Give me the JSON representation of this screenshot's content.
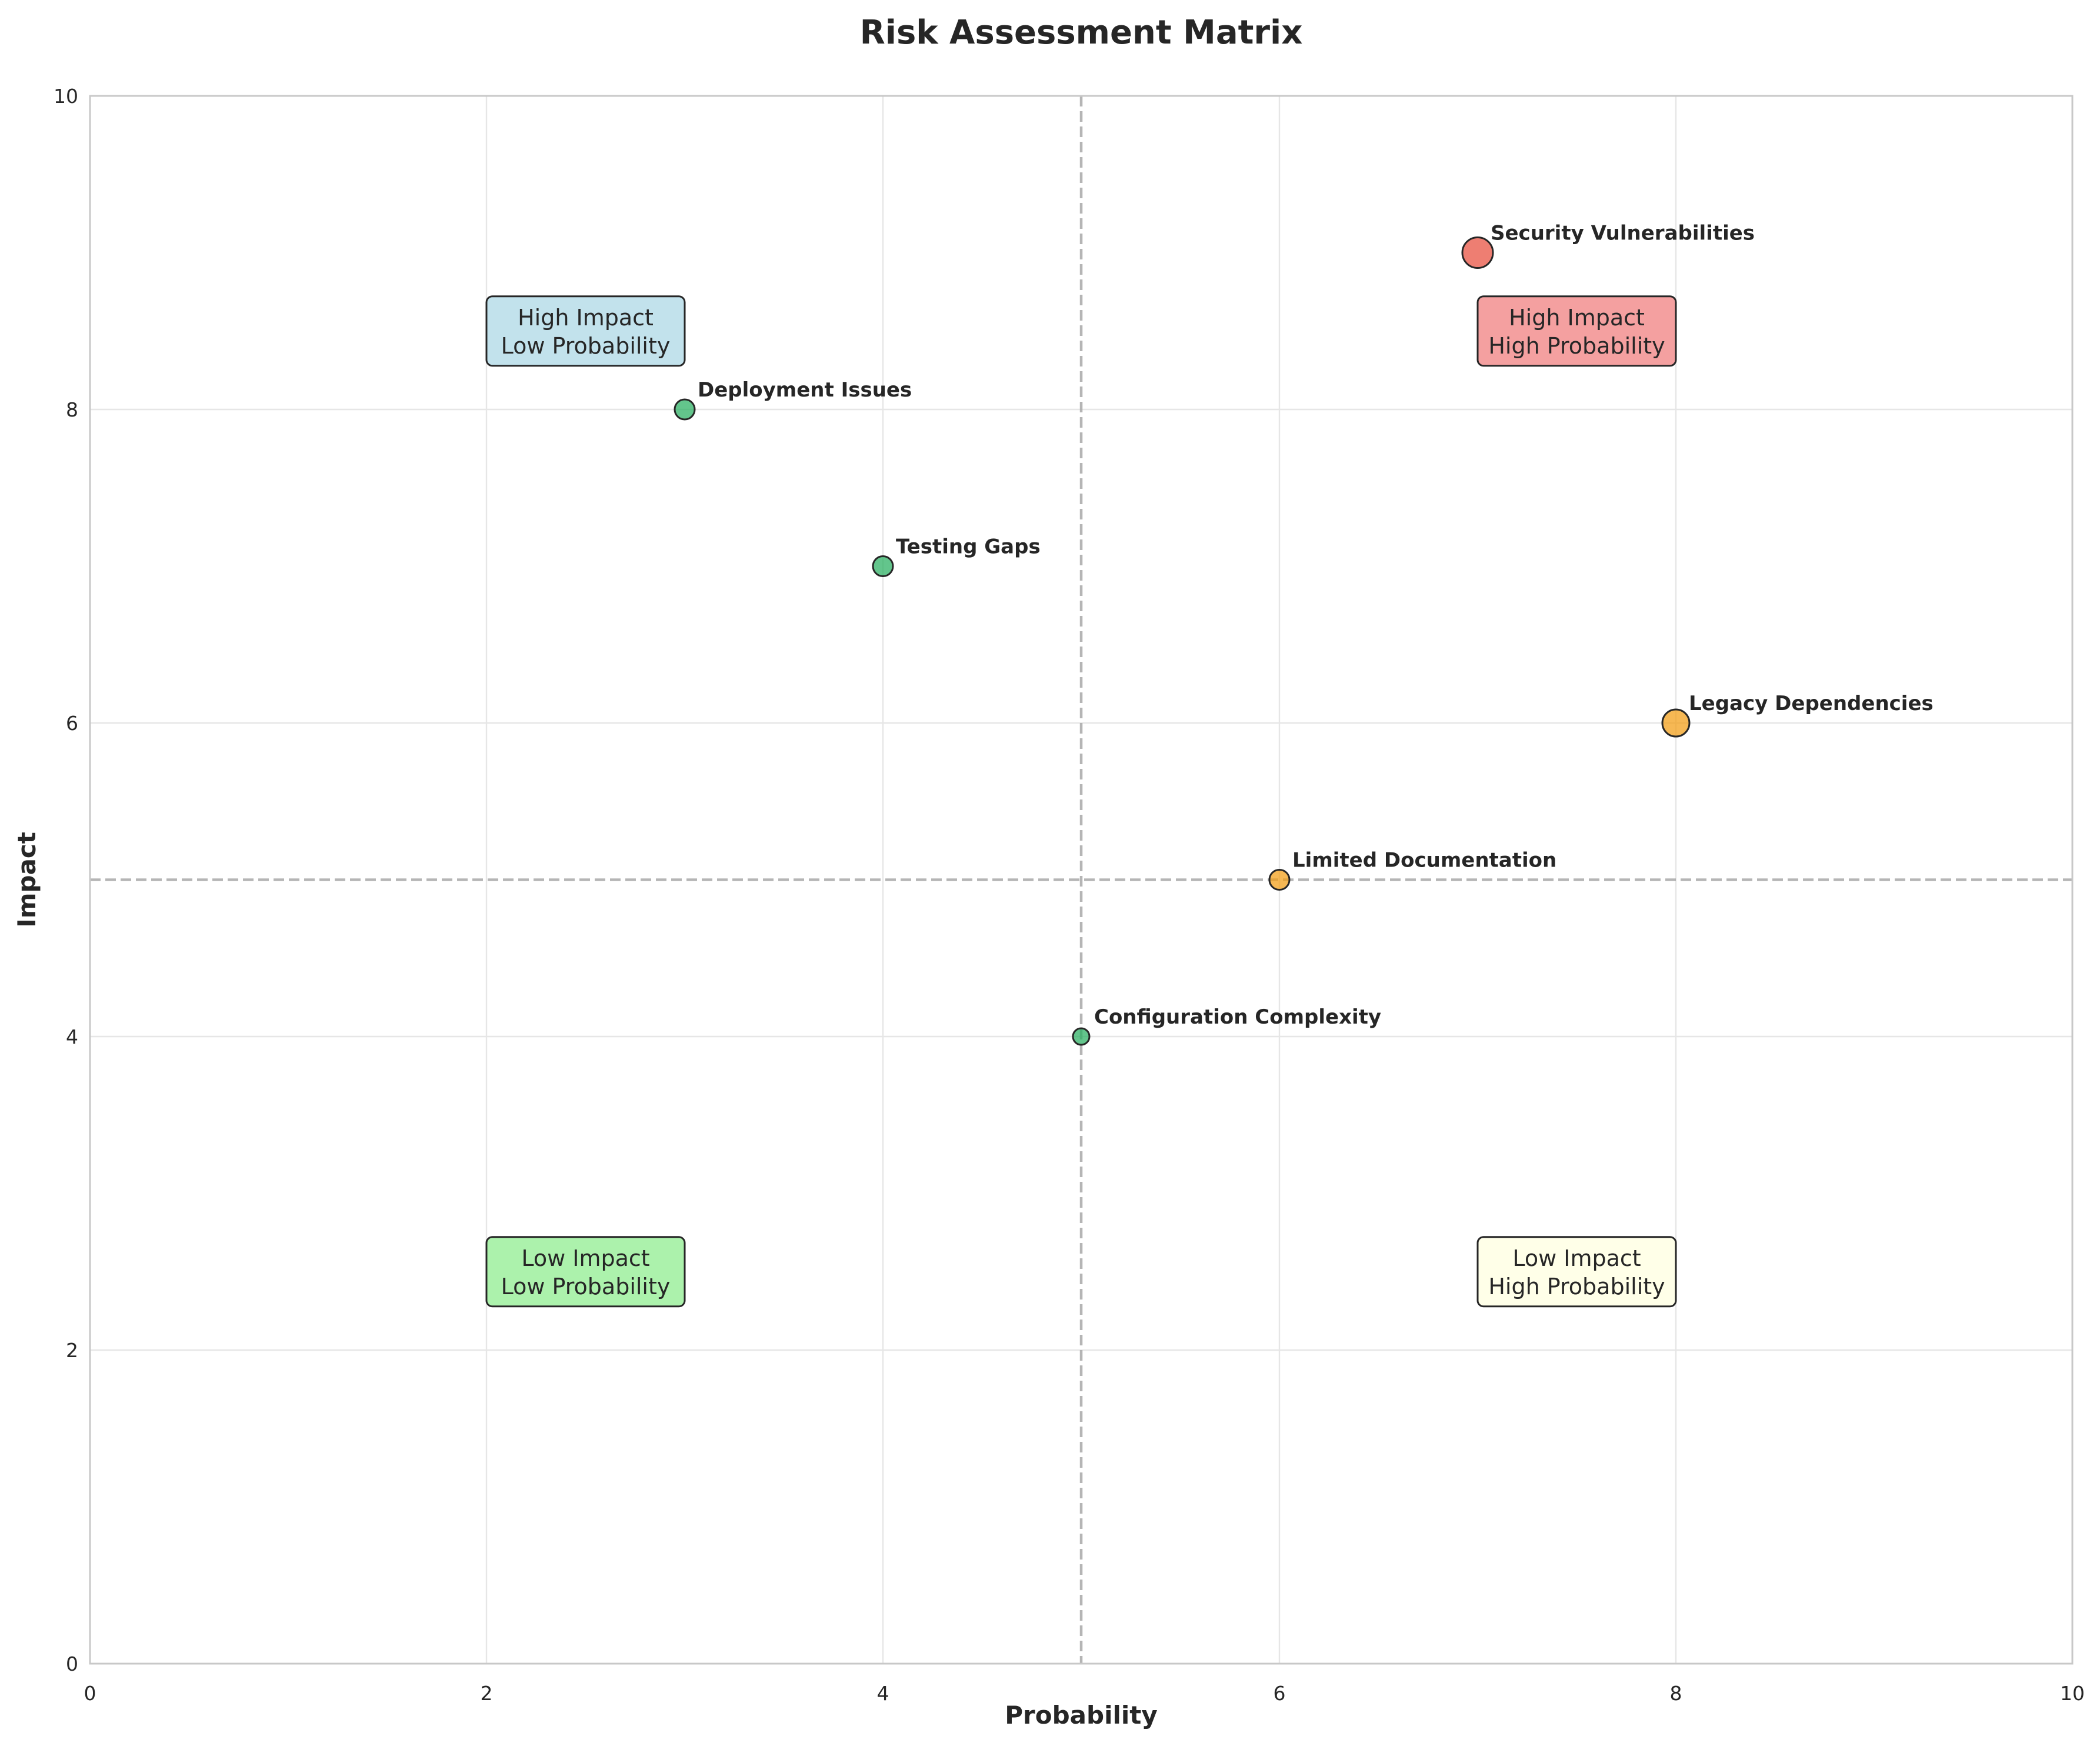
{
  "chart_data": {
    "type": "scatter",
    "title": "Risk Assessment Matrix",
    "xlabel": "Probability",
    "ylabel": "Impact",
    "xlim": [
      0,
      10
    ],
    "ylim": [
      0,
      10
    ],
    "xticks": [
      0,
      2,
      4,
      6,
      8,
      10
    ],
    "yticks": [
      0,
      2,
      4,
      6,
      8,
      10
    ],
    "grid": true,
    "threshold": {
      "x": 5,
      "y": 5
    },
    "points": [
      {
        "label": "Security Vulnerabilities",
        "x": 7,
        "y": 9,
        "color": "#e74c3c",
        "size": "large"
      },
      {
        "label": "Deployment Issues",
        "x": 3,
        "y": 8,
        "color": "#27ae60",
        "size": "small"
      },
      {
        "label": "Testing Gaps",
        "x": 4,
        "y": 7,
        "color": "#27ae60",
        "size": "small"
      },
      {
        "label": "Legacy Dependencies",
        "x": 8,
        "y": 6,
        "color": "#f39c12",
        "size": "medium"
      },
      {
        "label": "Limited Documentation",
        "x": 6,
        "y": 5,
        "color": "#f39c12",
        "size": "small"
      },
      {
        "label": "Configuration Complexity",
        "x": 5,
        "y": 4,
        "color": "#27ae60",
        "size": "xsmall"
      }
    ],
    "quadrants": [
      {
        "line1": "High Impact",
        "line2": "Low Probability",
        "x": 2.5,
        "y": 8.5,
        "color": "#add8e6"
      },
      {
        "line1": "High Impact",
        "line2": "High Probability",
        "x": 7.5,
        "y": 8.5,
        "color": "#f08080"
      },
      {
        "line1": "Low Impact",
        "line2": "Low Probability",
        "x": 2.5,
        "y": 2.5,
        "color": "#90ee90"
      },
      {
        "line1": "Low Impact",
        "line2": "High Probability",
        "x": 7.5,
        "y": 2.5,
        "color": "#ffffe0"
      }
    ]
  }
}
